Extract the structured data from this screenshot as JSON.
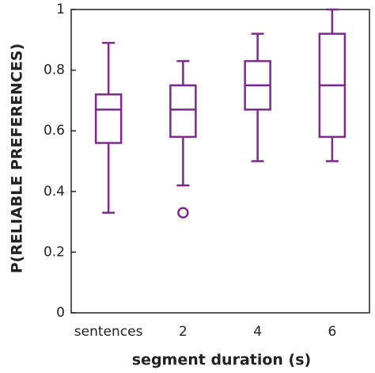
{
  "chart_data": {
    "type": "box",
    "xlabel": "segment duration (s)",
    "ylabel": "P(RELIABLE PREFERENCES)",
    "categories": [
      "sentences",
      "2",
      "4",
      "6"
    ],
    "color": "#7b2b8c",
    "boxes": [
      {
        "whislo": 0.33,
        "q1": 0.56,
        "med": 0.67,
        "q3": 0.72,
        "whishi": 0.89,
        "fliers": []
      },
      {
        "whislo": 0.42,
        "q1": 0.58,
        "med": 0.67,
        "q3": 0.75,
        "whishi": 0.83,
        "fliers": [
          0.33
        ]
      },
      {
        "whislo": 0.5,
        "q1": 0.67,
        "med": 0.75,
        "q3": 0.83,
        "whishi": 0.92,
        "fliers": []
      },
      {
        "whislo": 0.5,
        "q1": 0.58,
        "med": 0.75,
        "q3": 0.92,
        "whishi": 1,
        "fliers": []
      }
    ],
    "ylim": [
      0,
      1
    ],
    "yticks": [
      0,
      0.2,
      0.4,
      0.6,
      0.8,
      1
    ],
    "grid": false
  }
}
